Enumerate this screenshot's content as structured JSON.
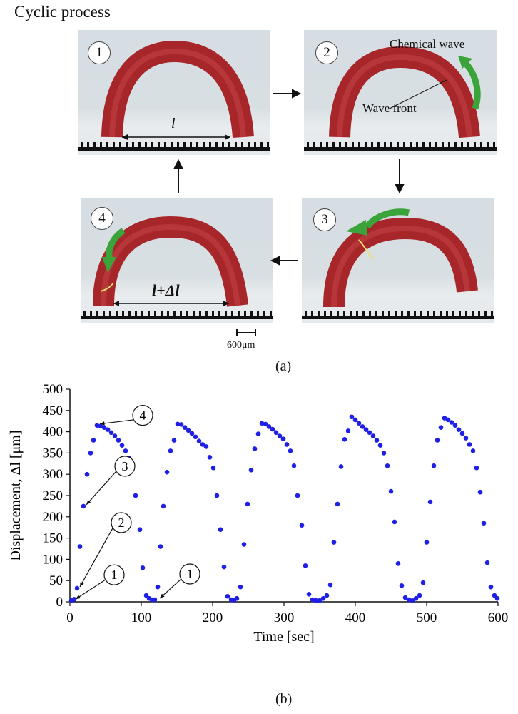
{
  "figure": {
    "title": "Cyclic process",
    "caption_a": "(a)",
    "caption_b": "(b)",
    "scale_bar": "600μm",
    "panels": [
      {
        "number": "1",
        "label": "l"
      },
      {
        "number": "2",
        "label_chemical_wave": "Chemical wave",
        "label_wave_front": "Wave front"
      },
      {
        "number": "3"
      },
      {
        "number": "4",
        "label": "l+Δl"
      }
    ]
  },
  "chart_data": {
    "type": "scatter",
    "xlabel": "Time [sec]",
    "ylabel": "Displacement, Δl [μm]",
    "xlim": [
      0,
      600
    ],
    "ylim": [
      0,
      500
    ],
    "xticks": [
      "0",
      "100",
      "200",
      "300",
      "400",
      "500",
      "600"
    ],
    "yticks": [
      "0",
      "50",
      "100",
      "150",
      "200",
      "250",
      "300",
      "350",
      "400",
      "450",
      "500"
    ],
    "grid": false,
    "marker_color": "#1f1fe6",
    "series": [
      {
        "points": [
          [
            2,
            3
          ],
          [
            6,
            6
          ],
          [
            10,
            32
          ],
          [
            14,
            130
          ],
          [
            19,
            225
          ],
          [
            24,
            300
          ],
          [
            29,
            350
          ],
          [
            33,
            380
          ],
          [
            38,
            415
          ],
          [
            43,
            413
          ],
          [
            48,
            410
          ],
          [
            53,
            405
          ],
          [
            58,
            398
          ],
          [
            63,
            390
          ],
          [
            68,
            380
          ],
          [
            73,
            368
          ],
          [
            78,
            355
          ],
          [
            83,
            338
          ],
          [
            87,
            315
          ],
          [
            92,
            250
          ],
          [
            98,
            170
          ],
          [
            102,
            80
          ],
          [
            107,
            15
          ],
          [
            111,
            8
          ],
          [
            115,
            5
          ],
          [
            119,
            5
          ],
          [
            123,
            35
          ],
          [
            127,
            130
          ],
          [
            131,
            225
          ],
          [
            136,
            305
          ],
          [
            141,
            355
          ],
          [
            146,
            380
          ],
          [
            151,
            418
          ],
          [
            156,
            417
          ],
          [
            161,
            410
          ],
          [
            166,
            403
          ],
          [
            171,
            396
          ],
          [
            176,
            388
          ],
          [
            181,
            378
          ],
          [
            186,
            370
          ],
          [
            191,
            365
          ],
          [
            196,
            340
          ],
          [
            201,
            315
          ],
          [
            206,
            250
          ],
          [
            211,
            170
          ],
          [
            216,
            82
          ],
          [
            221,
            13
          ],
          [
            226,
            5
          ],
          [
            230,
            4
          ],
          [
            234,
            8
          ],
          [
            239,
            35
          ],
          [
            244,
            135
          ],
          [
            249,
            230
          ],
          [
            254,
            310
          ],
          [
            259,
            360
          ],
          [
            264,
            395
          ],
          [
            269,
            420
          ],
          [
            274,
            418
          ],
          [
            279,
            412
          ],
          [
            284,
            406
          ],
          [
            289,
            398
          ],
          [
            294,
            390
          ],
          [
            299,
            383
          ],
          [
            304,
            370
          ],
          [
            309,
            355
          ],
          [
            314,
            320
          ],
          [
            319,
            250
          ],
          [
            325,
            180
          ],
          [
            330,
            85
          ],
          [
            335,
            18
          ],
          [
            340,
            5
          ],
          [
            345,
            3
          ],
          [
            350,
            3
          ],
          [
            355,
            8
          ],
          [
            360,
            15
          ],
          [
            365,
            40
          ],
          [
            370,
            140
          ],
          [
            375,
            230
          ],
          [
            380,
            318
          ],
          [
            385,
            382
          ],
          [
            390,
            402
          ],
          [
            395,
            435
          ],
          [
            400,
            428
          ],
          [
            405,
            420
          ],
          [
            410,
            412
          ],
          [
            415,
            405
          ],
          [
            420,
            398
          ],
          [
            425,
            390
          ],
          [
            430,
            380
          ],
          [
            435,
            368
          ],
          [
            440,
            350
          ],
          [
            445,
            320
          ],
          [
            450,
            260
          ],
          [
            455,
            188
          ],
          [
            460,
            90
          ],
          [
            465,
            38
          ],
          [
            470,
            10
          ],
          [
            475,
            5
          ],
          [
            480,
            3
          ],
          [
            485,
            8
          ],
          [
            490,
            15
          ],
          [
            495,
            45
          ],
          [
            500,
            140
          ],
          [
            505,
            235
          ],
          [
            510,
            320
          ],
          [
            515,
            380
          ],
          [
            520,
            410
          ],
          [
            525,
            432
          ],
          [
            530,
            428
          ],
          [
            535,
            422
          ],
          [
            540,
            415
          ],
          [
            545,
            405
          ],
          [
            550,
            396
          ],
          [
            555,
            385
          ],
          [
            560,
            370
          ],
          [
            565,
            355
          ],
          [
            570,
            315
          ],
          [
            575,
            258
          ],
          [
            580,
            185
          ],
          [
            585,
            92
          ],
          [
            590,
            35
          ],
          [
            595,
            15
          ],
          [
            599,
            8
          ]
        ]
      }
    ],
    "annotations": [
      {
        "label": "1",
        "target": [
          4,
          3
        ]
      },
      {
        "label": "2",
        "target": [
          10,
          32
        ]
      },
      {
        "label": "3",
        "target": [
          19,
          225
        ]
      },
      {
        "label": "4",
        "target": [
          38,
          415
        ]
      },
      {
        "label": "1",
        "target": [
          122,
          5
        ]
      }
    ]
  }
}
